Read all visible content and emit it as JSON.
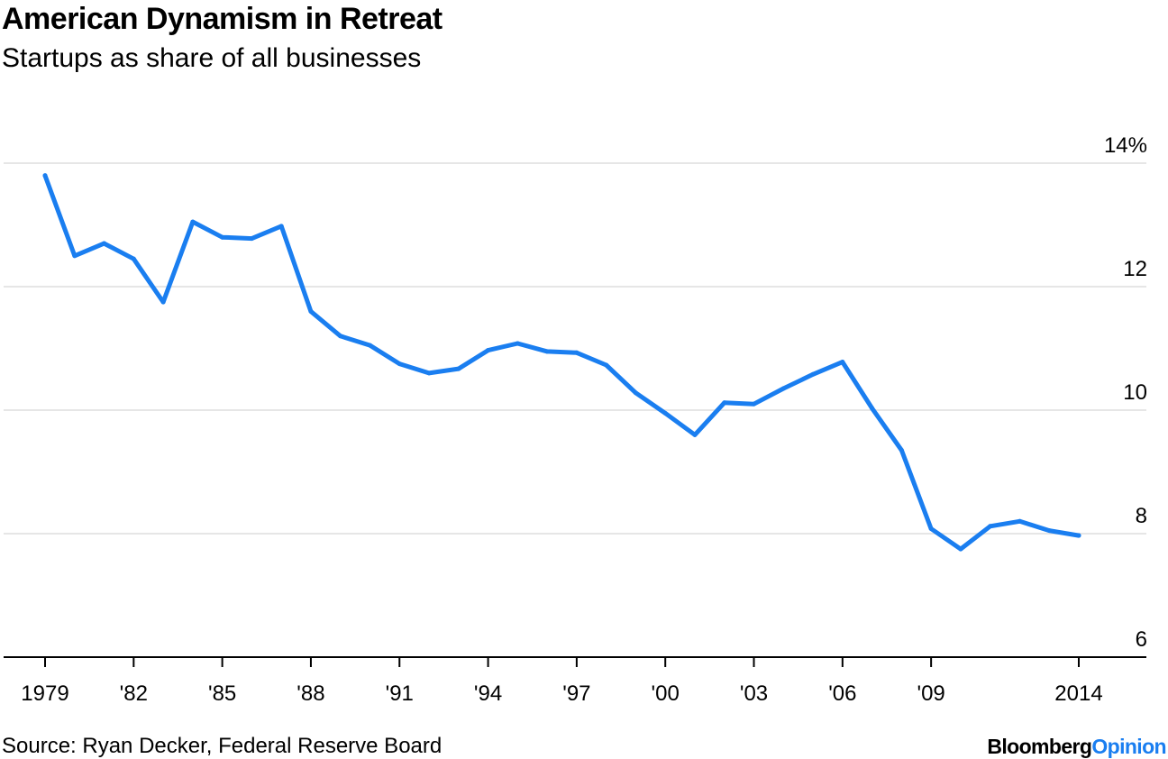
{
  "title": "American Dynamism in Retreat",
  "subtitle": "Startups as share of all businesses",
  "source": "Source: Ryan Decker, Federal Reserve Board",
  "brand": {
    "main": "Bloomberg",
    "sub": "Opinion"
  },
  "colors": {
    "line": "#1a7ef0",
    "grid": "#e6e6e6",
    "axis": "#000000",
    "brand_accent": "#1a7ef0"
  },
  "chart_data": {
    "type": "line",
    "title": "American Dynamism in Retreat",
    "subtitle": "Startups as share of all businesses",
    "xlabel": "",
    "ylabel": "",
    "x": [
      1979,
      1980,
      1981,
      1982,
      1983,
      1984,
      1985,
      1986,
      1987,
      1988,
      1989,
      1990,
      1991,
      1992,
      1993,
      1994,
      1995,
      1996,
      1997,
      1998,
      1999,
      2000,
      2001,
      2002,
      2003,
      2004,
      2005,
      2006,
      2007,
      2008,
      2009,
      2010,
      2011,
      2012,
      2013,
      2014
    ],
    "series": [
      {
        "values": [
          13.8,
          12.5,
          12.7,
          12.45,
          11.75,
          13.05,
          12.8,
          12.78,
          12.98,
          11.6,
          11.2,
          11.05,
          10.75,
          10.6,
          10.67,
          10.97,
          11.08,
          10.95,
          10.93,
          10.73,
          10.28,
          9.95,
          9.6,
          10.12,
          10.1,
          10.35,
          10.58,
          10.78,
          10.03,
          9.35,
          8.08,
          7.75,
          8.12,
          8.2,
          8.05,
          7.97
        ]
      }
    ],
    "xlim": [
      1979,
      2014
    ],
    "ylim": [
      6,
      14
    ],
    "y_ticks": [
      {
        "value": 14,
        "label": "14%"
      },
      {
        "value": 12,
        "label": "12"
      },
      {
        "value": 10,
        "label": "10"
      },
      {
        "value": 8,
        "label": "8"
      },
      {
        "value": 6,
        "label": "6"
      }
    ],
    "x_ticks": [
      {
        "value": 1979,
        "label": "1979"
      },
      {
        "value": 1982,
        "label": "'82"
      },
      {
        "value": 1985,
        "label": "'85"
      },
      {
        "value": 1988,
        "label": "'88"
      },
      {
        "value": 1991,
        "label": "'91"
      },
      {
        "value": 1994,
        "label": "'94"
      },
      {
        "value": 1997,
        "label": "'97"
      },
      {
        "value": 2000,
        "label": "'00"
      },
      {
        "value": 2003,
        "label": "'03"
      },
      {
        "value": 2006,
        "label": "'06"
      },
      {
        "value": 2009,
        "label": "'09"
      },
      {
        "value": 2014,
        "label": "2014"
      }
    ],
    "grid": true,
    "y_axis_side": "right",
    "legend": "none"
  }
}
